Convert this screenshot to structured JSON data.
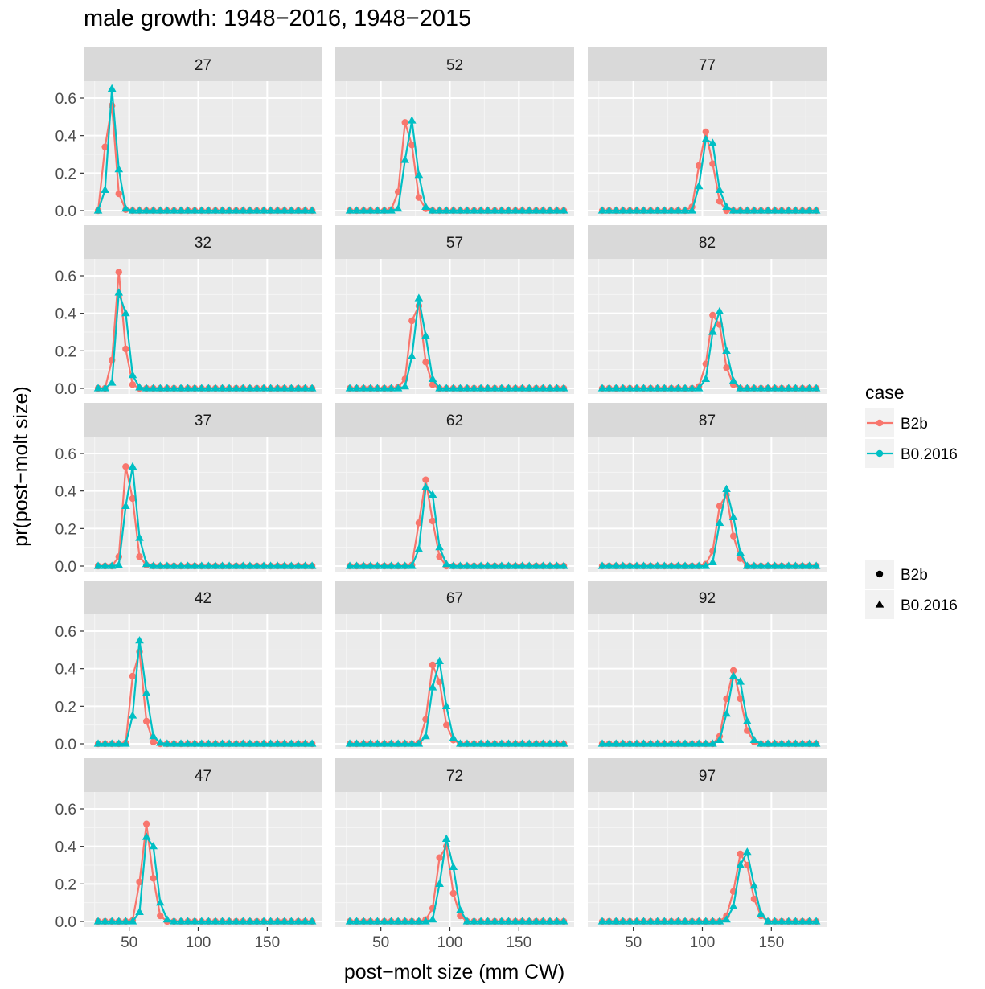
{
  "chart_data": {
    "type": "line",
    "title": "male growth: 1948−2016, 1948−2015",
    "xlabel": "post−molt size (mm CW)",
    "ylabel": "pr(post−molt size)",
    "xlim": [
      17,
      190
    ],
    "ylim": [
      -0.03,
      0.69
    ],
    "x_ticks": [
      50,
      100,
      150
    ],
    "x_tick_labels": [
      "50",
      "100",
      "150"
    ],
    "y_ticks": [
      0.0,
      0.2,
      0.4,
      0.6
    ],
    "y_tick_labels": [
      "0.0",
      "0.2",
      "0.4",
      "0.6"
    ],
    "grid": true,
    "facet_layout": {
      "columns": 3,
      "rows": 5,
      "order": "column"
    },
    "size_bins": [
      27.5,
      32.5,
      37.5,
      42.5,
      47.5,
      52.5,
      57.5,
      62.5,
      67.5,
      72.5,
      77.5,
      82.5,
      87.5,
      92.5,
      97.5,
      102.5,
      107.5,
      112.5,
      117.5,
      122.5,
      127.5,
      132.5,
      137.5,
      142.5,
      147.5,
      152.5,
      157.5,
      162.5,
      167.5,
      172.5,
      177.5,
      182.5
    ],
    "series_styles": [
      {
        "name": "B2b",
        "color": "#F8766D",
        "shape": "circle"
      },
      {
        "name": "B0.2016",
        "color": "#00BFC4",
        "shape": "triangle"
      }
    ],
    "legend": {
      "position": "right",
      "color_title": "case",
      "color_entries": [
        "B2b",
        "B0.2016"
      ],
      "shape_entries": [
        "B2b",
        "B0.2016"
      ]
    },
    "facets": [
      {
        "label": "27",
        "peaks": {
          "B2b": {
            "x": [
              27.5,
              32.5,
              37.5,
              42.5,
              47.5
            ],
            "y": [
              0.0,
              0.34,
              0.56,
              0.09,
              0.005
            ]
          },
          "B0.2016": {
            "x": [
              27.5,
              32.5,
              37.5,
              42.5,
              47.5
            ],
            "y": [
              0.0,
              0.11,
              0.65,
              0.22,
              0.01
            ]
          }
        }
      },
      {
        "label": "32",
        "peaks": {
          "B2b": {
            "x": [
              32.5,
              37.5,
              42.5,
              47.5,
              52.5
            ],
            "y": [
              0.0,
              0.15,
              0.62,
              0.21,
              0.02
            ]
          },
          "B0.2016": {
            "x": [
              32.5,
              37.5,
              42.5,
              47.5,
              52.5,
              57.5
            ],
            "y": [
              0.0,
              0.03,
              0.51,
              0.4,
              0.07,
              0.005
            ]
          }
        }
      },
      {
        "label": "37",
        "peaks": {
          "B2b": {
            "x": [
              37.5,
              42.5,
              47.5,
              52.5,
              57.5,
              62.5
            ],
            "y": [
              0.0,
              0.05,
              0.53,
              0.36,
              0.05,
              0.005
            ]
          },
          "B0.2016": {
            "x": [
              37.5,
              42.5,
              47.5,
              52.5,
              57.5,
              62.5
            ],
            "y": [
              0.0,
              0.005,
              0.32,
              0.53,
              0.15,
              0.01
            ]
          }
        }
      },
      {
        "label": "42",
        "peaks": {
          "B2b": {
            "x": [
              47.5,
              52.5,
              57.5,
              62.5,
              67.5
            ],
            "y": [
              0.005,
              0.36,
              0.49,
              0.12,
              0.01
            ]
          },
          "B0.2016": {
            "x": [
              47.5,
              52.5,
              57.5,
              62.5,
              67.5,
              72.5
            ],
            "y": [
              0.0,
              0.15,
              0.55,
              0.27,
              0.04,
              0.005
            ]
          }
        }
      },
      {
        "label": "47",
        "peaks": {
          "B2b": {
            "x": [
              52.5,
              57.5,
              62.5,
              67.5,
              72.5
            ],
            "y": [
              0.005,
              0.21,
              0.52,
              0.23,
              0.03
            ]
          },
          "B0.2016": {
            "x": [
              52.5,
              57.5,
              62.5,
              67.5,
              72.5,
              77.5
            ],
            "y": [
              0.0,
              0.05,
              0.45,
              0.4,
              0.1,
              0.01
            ]
          }
        }
      },
      {
        "label": "52",
        "peaks": {
          "B2b": {
            "x": [
              57.5,
              62.5,
              67.5,
              72.5,
              77.5,
              82.5
            ],
            "y": [
              0.005,
              0.1,
              0.47,
              0.35,
              0.07,
              0.01
            ]
          },
          "B0.2016": {
            "x": [
              57.5,
              62.5,
              67.5,
              72.5,
              77.5,
              82.5
            ],
            "y": [
              0.0,
              0.01,
              0.27,
              0.48,
              0.19,
              0.02
            ]
          }
        }
      },
      {
        "label": "57",
        "peaks": {
          "B2b": {
            "x": [
              62.5,
              67.5,
              72.5,
              77.5,
              82.5,
              87.5
            ],
            "y": [
              0.005,
              0.05,
              0.36,
              0.44,
              0.14,
              0.02
            ]
          },
          "B0.2016": {
            "x": [
              62.5,
              67.5,
              72.5,
              77.5,
              82.5,
              87.5
            ],
            "y": [
              0.0,
              0.01,
              0.17,
              0.48,
              0.28,
              0.05
            ]
          }
        }
      },
      {
        "label": "62",
        "peaks": {
          "B2b": {
            "x": [
              72.5,
              77.5,
              82.5,
              87.5,
              92.5
            ],
            "y": [
              0.005,
              0.23,
              0.46,
              0.24,
              0.05
            ]
          },
          "B0.2016": {
            "x": [
              72.5,
              77.5,
              82.5,
              87.5,
              92.5,
              97.5
            ],
            "y": [
              0.0,
              0.09,
              0.42,
              0.38,
              0.1,
              0.01
            ]
          }
        }
      },
      {
        "label": "67",
        "peaks": {
          "B2b": {
            "x": [
              77.5,
              82.5,
              87.5,
              92.5,
              97.5,
              102.5
            ],
            "y": [
              0.005,
              0.13,
              0.42,
              0.33,
              0.1,
              0.02
            ]
          },
          "B0.2016": {
            "x": [
              77.5,
              82.5,
              87.5,
              92.5,
              97.5,
              102.5
            ],
            "y": [
              0.0,
              0.04,
              0.3,
              0.44,
              0.2,
              0.03
            ]
          }
        }
      },
      {
        "label": "72",
        "peaks": {
          "B2b": {
            "x": [
              82.5,
              87.5,
              92.5,
              97.5,
              102.5,
              107.5
            ],
            "y": [
              0.01,
              0.07,
              0.34,
              0.4,
              0.15,
              0.03
            ]
          },
          "B0.2016": {
            "x": [
              82.5,
              87.5,
              92.5,
              97.5,
              102.5,
              107.5
            ],
            "y": [
              0.0,
              0.01,
              0.2,
              0.44,
              0.29,
              0.06
            ]
          }
        }
      },
      {
        "label": "77",
        "peaks": {
          "B2b": {
            "x": [
              92.5,
              97.5,
              102.5,
              107.5,
              112.5
            ],
            "y": [
              0.02,
              0.24,
              0.42,
              0.25,
              0.05
            ]
          },
          "B0.2016": {
            "x": [
              92.5,
              97.5,
              102.5,
              107.5,
              112.5,
              117.5
            ],
            "y": [
              0.0,
              0.13,
              0.38,
              0.36,
              0.11,
              0.02
            ]
          }
        }
      },
      {
        "label": "82",
        "peaks": {
          "B2b": {
            "x": [
              97.5,
              102.5,
              107.5,
              112.5,
              117.5,
              122.5
            ],
            "y": [
              0.01,
              0.13,
              0.39,
              0.34,
              0.11,
              0.02
            ]
          },
          "B0.2016": {
            "x": [
              97.5,
              102.5,
              107.5,
              112.5,
              117.5,
              122.5
            ],
            "y": [
              0.0,
              0.05,
              0.3,
              0.41,
              0.2,
              0.04
            ]
          }
        }
      },
      {
        "label": "87",
        "peaks": {
          "B2b": {
            "x": [
              102.5,
              107.5,
              112.5,
              117.5,
              122.5,
              127.5
            ],
            "y": [
              0.01,
              0.08,
              0.32,
              0.38,
              0.16,
              0.04
            ]
          },
          "B0.2016": {
            "x": [
              102.5,
              107.5,
              112.5,
              117.5,
              122.5,
              127.5
            ],
            "y": [
              0.0,
              0.02,
              0.23,
              0.41,
              0.26,
              0.07
            ]
          }
        }
      },
      {
        "label": "92",
        "peaks": {
          "B2b": {
            "x": [
              112.5,
              117.5,
              122.5,
              127.5,
              132.5,
              137.5
            ],
            "y": [
              0.04,
              0.24,
              0.39,
              0.24,
              0.07,
              0.01
            ]
          },
          "B0.2016": {
            "x": [
              112.5,
              117.5,
              122.5,
              127.5,
              132.5,
              137.5
            ],
            "y": [
              0.02,
              0.16,
              0.36,
              0.33,
              0.12,
              0.02
            ]
          }
        }
      },
      {
        "label": "97",
        "peaks": {
          "B2b": {
            "x": [
              117.5,
              122.5,
              127.5,
              132.5,
              137.5,
              142.5
            ],
            "y": [
              0.03,
              0.16,
              0.36,
              0.3,
              0.12,
              0.03
            ]
          },
          "B0.2016": {
            "x": [
              117.5,
              122.5,
              127.5,
              132.5,
              137.5,
              142.5
            ],
            "y": [
              0.01,
              0.08,
              0.3,
              0.37,
              0.19,
              0.04
            ]
          }
        }
      }
    ]
  }
}
